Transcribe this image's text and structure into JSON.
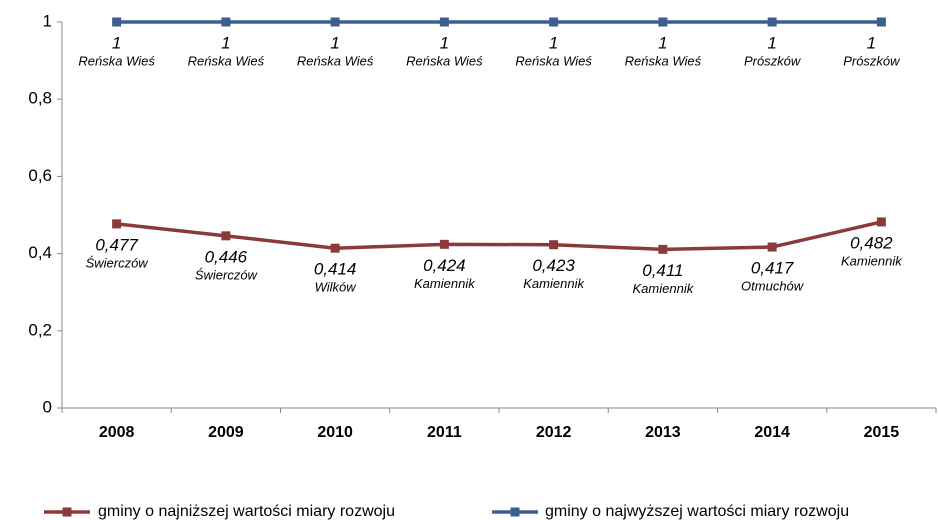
{
  "chart_data": {
    "type": "line",
    "categories": [
      "2008",
      "2009",
      "2010",
      "2011",
      "2012",
      "2013",
      "2014",
      "2015"
    ],
    "series": [
      {
        "name": "gminy o najniższej wartości miary rozwoju",
        "color": "#8b3a3a",
        "values": [
          0.477,
          0.446,
          0.414,
          0.424,
          0.423,
          0.411,
          0.417,
          0.482
        ],
        "value_labels": [
          "0,477",
          "0,446",
          "0,414",
          "0,424",
          "0,423",
          "0,411",
          "0,417",
          "0,482"
        ],
        "point_names": [
          "Świerczów",
          "Świerczów",
          "Wilków",
          "Kamiennik",
          "Kamiennik",
          "Kamiennik",
          "Otmuchów",
          "Kamiennik"
        ]
      },
      {
        "name": "gminy o najwyższej wartości miary rozwoju",
        "color": "#3d5f8f",
        "values": [
          1,
          1,
          1,
          1,
          1,
          1,
          1,
          1
        ],
        "point_names": [
          "Reńska Wieś",
          "Reńska Wieś",
          "Reńska Wieś",
          "Reńska Wieś",
          "Reńska Wieś",
          "Reńska Wieś",
          "Prószków",
          "Prószków"
        ]
      }
    ],
    "ylim": [
      0,
      1
    ],
    "yticks": [
      0,
      {
        "value": 0.2,
        "label": "0,2"
      },
      {
        "value": 0.4,
        "label": "0,4"
      },
      {
        "value": 0.6,
        "label": "0,6"
      },
      {
        "value": 0.8,
        "label": "0,8"
      },
      1
    ]
  }
}
